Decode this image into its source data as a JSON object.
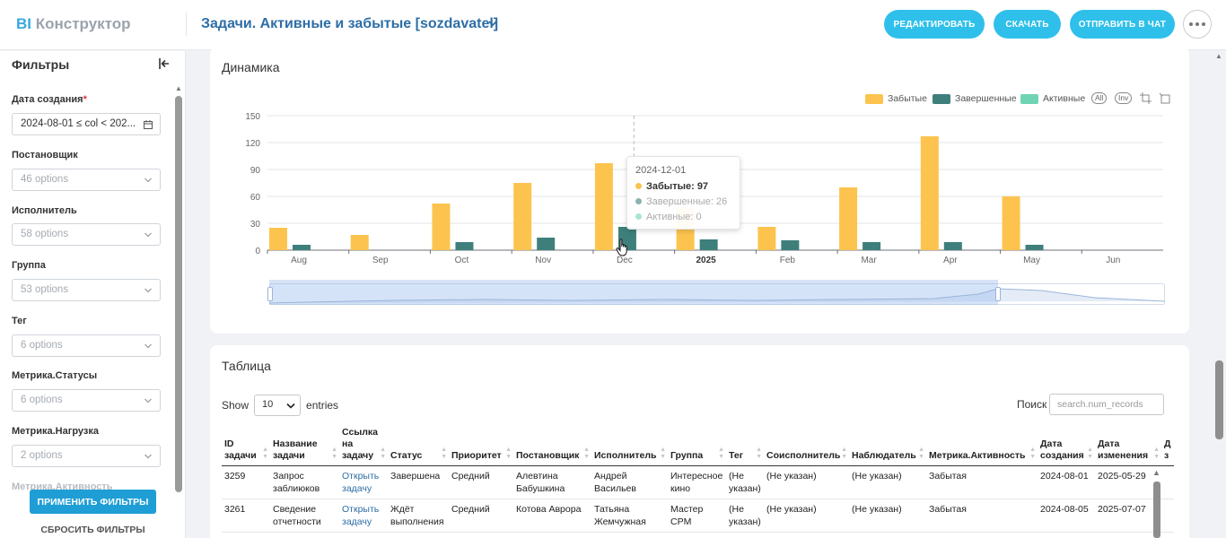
{
  "app": {
    "logo_bi": "BI",
    "logo_text": "Конструктор"
  },
  "header": {
    "title": "Задачи. Активные и забытые [sozdavatel]",
    "buttons": {
      "edit": "РЕДАКТИРОВАТЬ",
      "download": "СКАЧАТЬ",
      "send": "ОТПРАВИТЬ В ЧАТ"
    }
  },
  "sidebar": {
    "title": "Фильтры",
    "filters": [
      {
        "label": "Дата создания",
        "required": "*",
        "value": "2024-08-01 ≤ col < 202..."
      },
      {
        "label": "Постановщик",
        "placeholder": "46 options"
      },
      {
        "label": "Исполнитель",
        "placeholder": "58 options"
      },
      {
        "label": "Группа",
        "placeholder": "53 options"
      },
      {
        "label": "Тег",
        "placeholder": "6 options"
      },
      {
        "label": "Метрика.Статусы",
        "placeholder": "6 options"
      },
      {
        "label": "Метрика.Нагрузка",
        "placeholder": "2 options"
      },
      {
        "label": "Метрика.Активность"
      }
    ],
    "apply": "ПРИМЕНИТЬ ФИЛЬТРЫ",
    "reset": "СБРОСИТЬ ФИЛЬТРЫ"
  },
  "dynamics": {
    "title": "Динамика",
    "legend": [
      {
        "name": "Забытые",
        "color": "#fcc44e"
      },
      {
        "name": "Завершенные",
        "color": "#3e7f7c"
      },
      {
        "name": "Активные",
        "color": "#6fd4b4"
      }
    ],
    "pills": {
      "all": "All",
      "inv": "Inv"
    },
    "tooltip": {
      "date": "2024-12-01",
      "rows": [
        {
          "label": "Забытые: 97"
        },
        {
          "label": "Завершенные: 26"
        },
        {
          "label": "Активные: 0"
        }
      ]
    }
  },
  "chart_data": {
    "type": "bar",
    "categories": [
      "Aug",
      "Sep",
      "Oct",
      "Nov",
      "Dec",
      "2025",
      "Feb",
      "Mar",
      "Apr",
      "May",
      "Jun"
    ],
    "series": [
      {
        "name": "Забытые",
        "values": [
          25,
          17,
          52,
          75,
          97,
          48,
          26,
          70,
          127,
          60,
          0
        ]
      },
      {
        "name": "Завершенные",
        "values": [
          6,
          0,
          9,
          14,
          26,
          12,
          11,
          9,
          9,
          6,
          0
        ]
      },
      {
        "name": "Активные",
        "values": [
          0,
          0,
          0,
          0,
          0,
          0,
          0,
          0,
          0,
          0,
          0
        ]
      }
    ],
    "y_ticks": [
      0,
      30,
      60,
      90,
      120,
      150
    ],
    "ylim": [
      0,
      150
    ],
    "grid": true,
    "legend_position": "top-right",
    "bold_tick": "2025",
    "highlight_index": 4
  },
  "table": {
    "title": "Таблица",
    "show_label": "Show",
    "length_value": "10",
    "entries_label": "entries",
    "search_label": "Поиск",
    "search_placeholder": "search.num_records",
    "columns": [
      "ID задачи",
      "Название задачи",
      "Ссылка на задачу",
      "Статус",
      "Приоритет",
      "Постановщик",
      "Исполнитель",
      "Группа",
      "Тег",
      "Соисполнитель",
      "Наблюдатель",
      "Метрика.Активность",
      "Дата создания",
      "Дата изменения",
      "Д з"
    ],
    "rows": [
      [
        "3259",
        "Запрос заблиюков",
        "Открыть задачу",
        "Завершена",
        "Средний",
        "Алевтина Бабушкина",
        "Андрей Васильев",
        "Интересное кино",
        "(Не указан)",
        "(Не указан)",
        "(Не указан)",
        "Забытая",
        "2024-08-01",
        "2025-05-29"
      ],
      [
        "3261",
        "Сведение отчетности",
        "Открыть задачу",
        "Ждёт выполнения",
        "Средний",
        "Котова Аврора",
        "Татьяна Жемчужная",
        "Мастер CPM",
        "(Не указан)",
        "(Не указан)",
        "(Не указан)",
        "Забытая",
        "2024-08-05",
        "2025-07-07"
      ]
    ]
  }
}
